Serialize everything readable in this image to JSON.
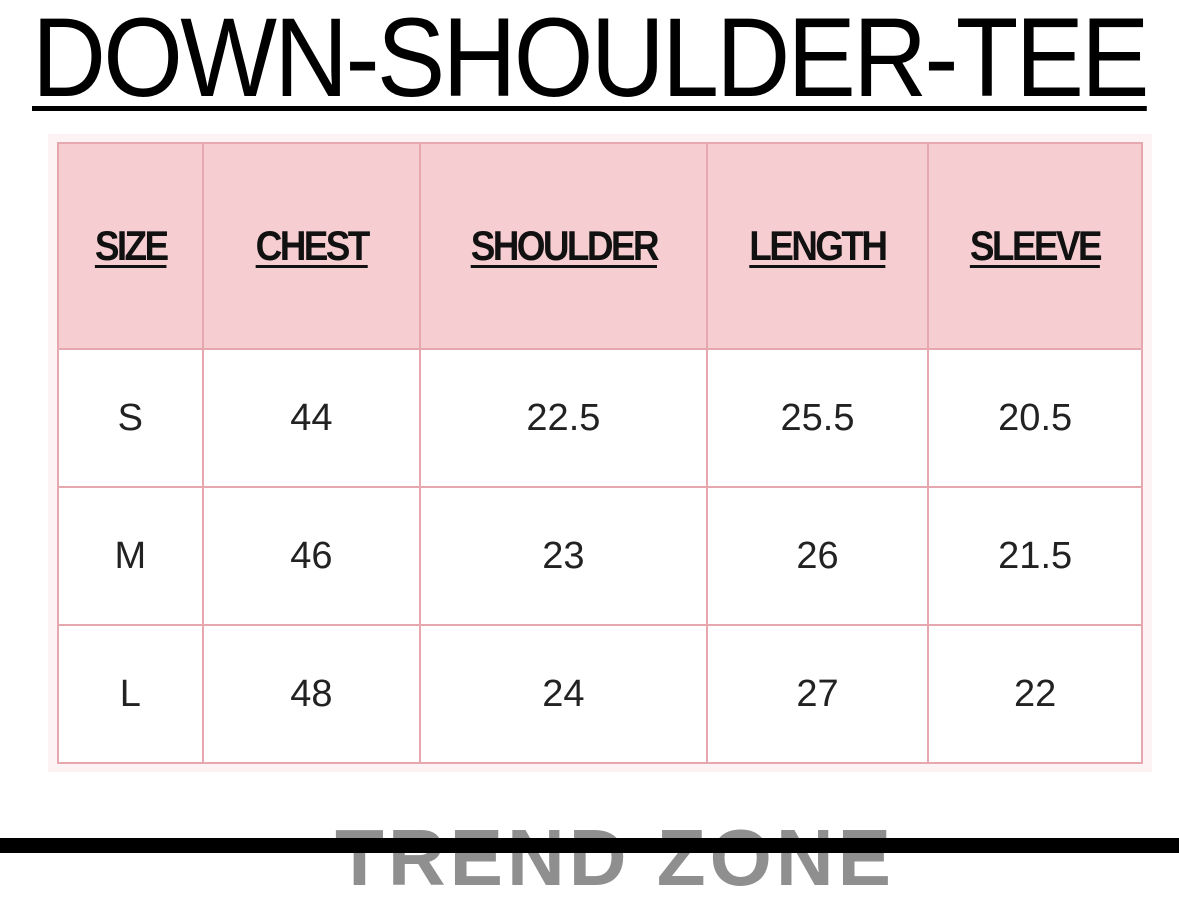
{
  "title": "DOWN-SHOULDER-TEE",
  "table": {
    "headers": [
      "SIZE",
      "CHEST",
      "SHOULDER",
      "LENGTH",
      "SLEEVE"
    ],
    "rows": [
      [
        "S",
        "44",
        "22.5",
        "25.5",
        "20.5"
      ],
      [
        "M",
        "46",
        "23",
        "26",
        "21.5"
      ],
      [
        "L",
        "48",
        "24",
        "27",
        "22"
      ]
    ]
  },
  "brand": "TREND ZONE",
  "colors": {
    "header_bg": "#f6cdd1",
    "border": "#e6a8ae"
  }
}
